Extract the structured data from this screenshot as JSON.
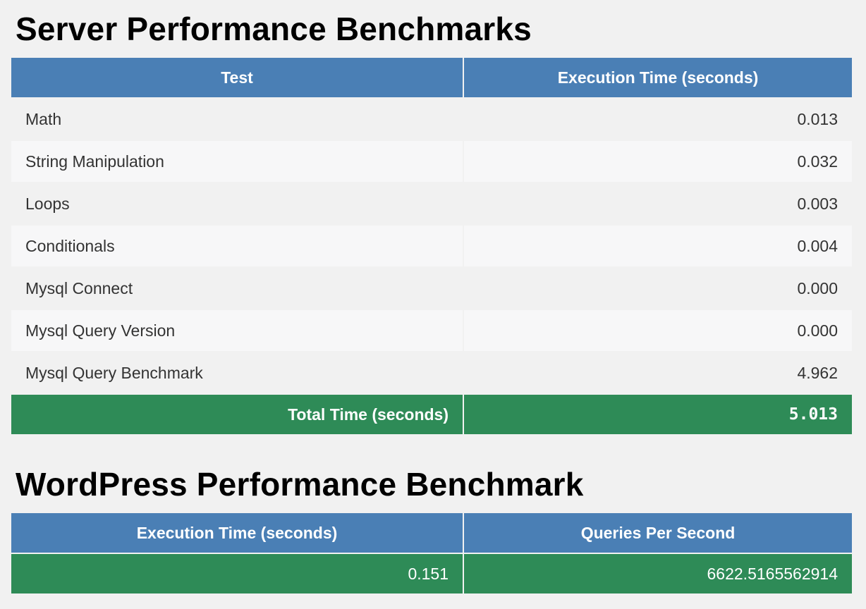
{
  "server": {
    "title": "Server Performance Benchmarks",
    "headers": [
      "Test",
      "Execution Time (seconds)"
    ],
    "rows": [
      {
        "name": "Math",
        "value": "0.013"
      },
      {
        "name": "String Manipulation",
        "value": "0.032"
      },
      {
        "name": "Loops",
        "value": "0.003"
      },
      {
        "name": "Conditionals",
        "value": "0.004"
      },
      {
        "name": "Mysql Connect",
        "value": "0.000"
      },
      {
        "name": "Mysql Query Version",
        "value": "0.000"
      },
      {
        "name": "Mysql Query Benchmark",
        "value": "4.962"
      }
    ],
    "total_label": "Total Time (seconds)",
    "total_value": "5.013"
  },
  "wordpress": {
    "title": "WordPress Performance Benchmark",
    "headers": [
      "Execution Time (seconds)",
      "Queries Per Second"
    ],
    "values": [
      "0.151",
      "6622.5165562914"
    ]
  },
  "colors": {
    "header_blue": "#4a7fb5",
    "total_green": "#2e8b57",
    "background": "#f1f1f1"
  }
}
